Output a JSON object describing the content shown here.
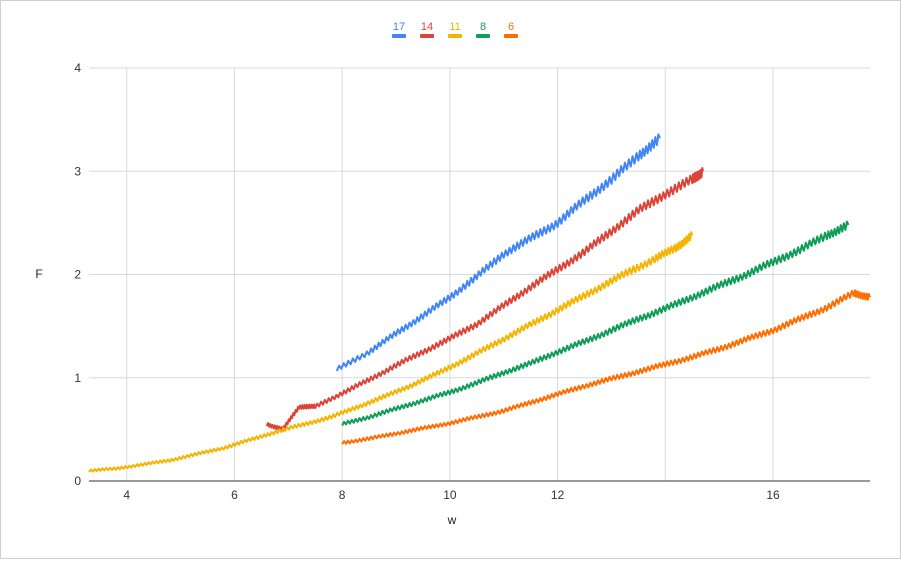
{
  "chart_data": {
    "type": "line",
    "title": "",
    "xlabel": "w",
    "ylabel": "F",
    "xlim": [
      3.3,
      17.8
    ],
    "ylim": [
      0,
      4
    ],
    "xticks": [
      "4",
      "6",
      "8",
      "10",
      "12",
      "16"
    ],
    "xtick_values": [
      4,
      6,
      8,
      10,
      12,
      16
    ],
    "yticks": [
      "0",
      "1",
      "2",
      "3",
      "4"
    ],
    "ytick_values": [
      0,
      1,
      2,
      3,
      4
    ],
    "grid": true,
    "legend_position": "top-center",
    "series": [
      {
        "name": "17",
        "color": "#4285f4",
        "points": [
          [
            7.9,
            1.08
          ],
          [
            8.5,
            1.25
          ],
          [
            9,
            1.43
          ],
          [
            9.5,
            1.6
          ],
          [
            10,
            1.78
          ],
          [
            10.5,
            1.98
          ],
          [
            11,
            2.2
          ],
          [
            11.5,
            2.35
          ],
          [
            12,
            2.5
          ],
          [
            12.5,
            2.72
          ],
          [
            13,
            2.92
          ],
          [
            13.5,
            3.15
          ],
          [
            13.9,
            3.32
          ]
        ]
      },
      {
        "name": "14",
        "color": "#db4437",
        "points": [
          [
            6.6,
            0.55
          ],
          [
            6.9,
            0.5
          ],
          [
            7.2,
            0.72
          ],
          [
            7.5,
            0.72
          ],
          [
            8,
            0.85
          ],
          [
            8.5,
            0.98
          ],
          [
            9,
            1.12
          ],
          [
            9.5,
            1.25
          ],
          [
            10,
            1.38
          ],
          [
            10.5,
            1.52
          ],
          [
            11,
            1.7
          ],
          [
            11.5,
            1.88
          ],
          [
            12,
            2.05
          ],
          [
            12.5,
            2.22
          ],
          [
            13,
            2.42
          ],
          [
            13.5,
            2.62
          ],
          [
            14,
            2.78
          ],
          [
            14.5,
            2.92
          ],
          [
            14.7,
            3.0
          ]
        ]
      },
      {
        "name": "11",
        "color": "#f4b400",
        "points": [
          [
            3.3,
            0.1
          ],
          [
            3.8,
            0.12
          ],
          [
            4.3,
            0.16
          ],
          [
            4.8,
            0.2
          ],
          [
            5.3,
            0.26
          ],
          [
            5.8,
            0.32
          ],
          [
            6.3,
            0.4
          ],
          [
            6.8,
            0.48
          ],
          [
            7.3,
            0.55
          ],
          [
            7.8,
            0.62
          ],
          [
            8.3,
            0.72
          ],
          [
            8.8,
            0.82
          ],
          [
            9.3,
            0.93
          ],
          [
            9.8,
            1.05
          ],
          [
            10.3,
            1.18
          ],
          [
            10.8,
            1.32
          ],
          [
            11.3,
            1.46
          ],
          [
            11.8,
            1.6
          ],
          [
            12.3,
            1.74
          ],
          [
            12.8,
            1.88
          ],
          [
            13.3,
            2.02
          ],
          [
            13.8,
            2.15
          ],
          [
            14.2,
            2.26
          ],
          [
            14.5,
            2.38
          ]
        ]
      },
      {
        "name": "8",
        "color": "#0f9d58",
        "points": [
          [
            8.0,
            0.55
          ],
          [
            8.5,
            0.62
          ],
          [
            9,
            0.7
          ],
          [
            9.5,
            0.78
          ],
          [
            10,
            0.86
          ],
          [
            10.5,
            0.95
          ],
          [
            11,
            1.05
          ],
          [
            11.5,
            1.14
          ],
          [
            12,
            1.25
          ],
          [
            12.5,
            1.35
          ],
          [
            13,
            1.46
          ],
          [
            13.5,
            1.57
          ],
          [
            14,
            1.67
          ],
          [
            14.5,
            1.78
          ],
          [
            15,
            1.89
          ],
          [
            15.5,
            2.0
          ],
          [
            16,
            2.12
          ],
          [
            16.5,
            2.24
          ],
          [
            17,
            2.38
          ],
          [
            17.4,
            2.48
          ]
        ]
      },
      {
        "name": "6",
        "color": "#ff6d01",
        "points": [
          [
            8.0,
            0.37
          ],
          [
            8.5,
            0.41
          ],
          [
            9,
            0.46
          ],
          [
            9.5,
            0.51
          ],
          [
            10,
            0.56
          ],
          [
            10.5,
            0.62
          ],
          [
            11,
            0.68
          ],
          [
            11.5,
            0.76
          ],
          [
            12,
            0.84
          ],
          [
            12.5,
            0.92
          ],
          [
            13,
            0.99
          ],
          [
            13.5,
            1.06
          ],
          [
            14,
            1.13
          ],
          [
            14.5,
            1.2
          ],
          [
            15,
            1.28
          ],
          [
            15.5,
            1.37
          ],
          [
            16,
            1.46
          ],
          [
            16.5,
            1.57
          ],
          [
            17,
            1.68
          ],
          [
            17.5,
            1.82
          ],
          [
            17.8,
            1.78
          ]
        ]
      }
    ]
  }
}
